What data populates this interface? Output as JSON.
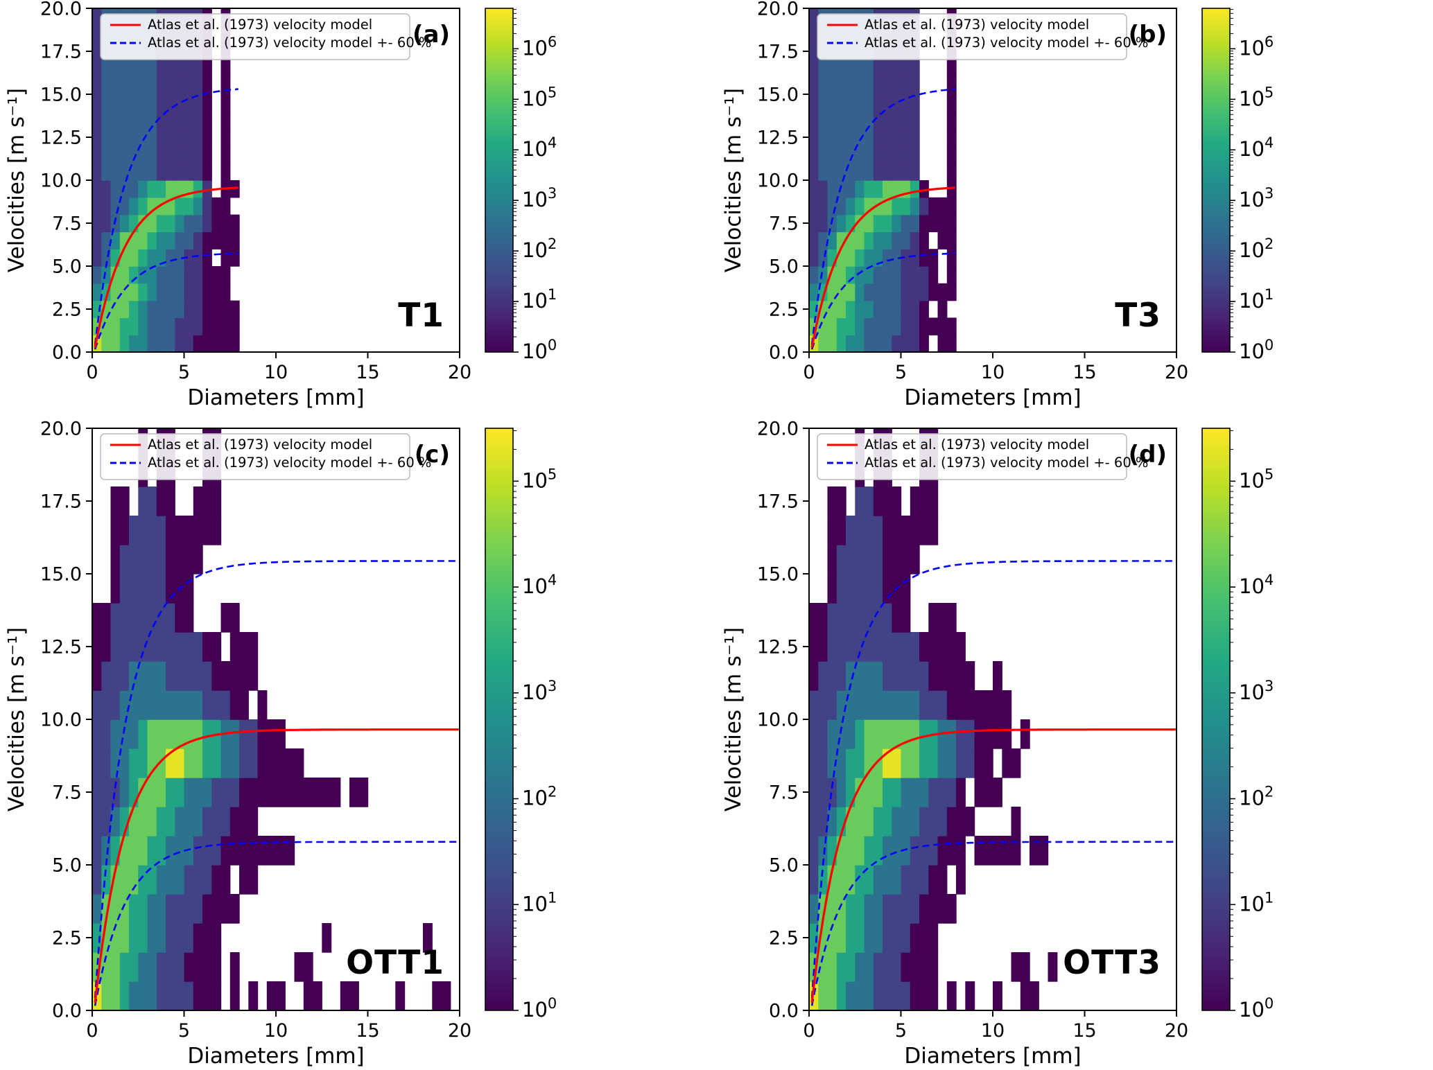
{
  "chart_data": {
    "type": "heatmap",
    "xlabel": "Diameters [mm]",
    "ylabel": "Velocities [m s⁻¹]",
    "xlim": [
      0,
      20
    ],
    "ylim": [
      0,
      20
    ],
    "xtick_values": [
      0,
      5,
      10,
      15,
      20
    ],
    "xtick_labels": [
      "0",
      "5",
      "10",
      "15",
      "20"
    ],
    "ytick_values": [
      0,
      2.5,
      5,
      7.5,
      10,
      12.5,
      15,
      17.5,
      20
    ],
    "ytick_labels": [
      "0.0",
      "2.5",
      "5.0",
      "7.5",
      "10.0",
      "12.5",
      "15.0",
      "17.5",
      "20.0"
    ],
    "legend": [
      {
        "label": "Atlas et al. (1973) velocity model",
        "color": "#ff0000",
        "style": "solid"
      },
      {
        "label": "Atlas et al. (1973) velocity model +- 60 %",
        "color": "#0000ff",
        "style": "dashed"
      }
    ],
    "velocity_model": {
      "form": "v(D) = 9.65 - 10.3 exp(-0.6 D)",
      "v_inf": 9.65,
      "amp": 10.3,
      "decay": 0.6,
      "band_factors": [
        1.6,
        0.6
      ]
    },
    "colormap": {
      "name": "viridis",
      "stops": [
        "#440154",
        "#482475",
        "#414487",
        "#355f8d",
        "#2a788e",
        "#21918c",
        "#22a884",
        "#44bf70",
        "#7ad151",
        "#bddf26",
        "#fde725"
      ]
    },
    "cbar_label_base": "10",
    "panels": [
      {
        "letter": "(a)",
        "name": "T1",
        "row": "top",
        "curve_dmax": 8,
        "cbar_tick_exponents": [
          0,
          1,
          2,
          3,
          4,
          5,
          6
        ],
        "cbar_span": 6.8,
        "value_norm": 6.5,
        "bins": {
          "d0": 0,
          "d_step": 0.5,
          "v0": 0,
          "v_step": 1.0
        },
        "counts_log10_rows_bottom_up": [
          "6554332221100000",
          "5554432221110000",
          "4555432222110000",
          "345554322211000.",
          "235543322211000.",
          "1245543322110.00",
          "1235554332210000",
          "1123455443221000",
          "112234555443100.",
          "1122234455541.00",
          "1222222111110.0.",
          "1222222111110.0.",
          "1222222111110.0.",
          "1222222111110.0.",
          "1222222111110.0.",
          "1222222111110.0.",
          "1222222111110.0.",
          "1222222111110.0.",
          "1222222111110.0.",
          "1222222111110.0."
        ]
      },
      {
        "letter": "(b)",
        "name": "T3",
        "row": "top",
        "curve_dmax": 8,
        "cbar_tick_exponents": [
          0,
          1,
          2,
          3,
          4,
          5,
          6
        ],
        "cbar_span": 6.8,
        "value_norm": 6.5,
        "bins": {
          "d0": 0,
          "d_step": 0.5,
          "v0": 0,
          "v_step": 1.0
        },
        "counts_log10_rows_bottom_up": [
          "6554332221110.00",
          "5554432222110000",
          "4555433222110.0.",
          "3455532222111000",
          "23554332221110.0",
          "12455433221100.0",
          "1235554332210.00",
          "1123455443220000",
          "1122345554431000",
          "1122234455540..0",
          "122222211111...0",
          "122222211111...0",
          "122222211111...0",
          "122222211111...0",
          "122222211111...0",
          "122222211111...0",
          "122222211111...0",
          "122222211111...0",
          "122222211111...0",
          "122222211111...0"
        ]
      },
      {
        "letter": "(c)",
        "name": "OTT1",
        "row": "bottom",
        "curve_dmax": 20,
        "cbar_tick_exponents": [
          0,
          1,
          2,
          3,
          4,
          5
        ],
        "cbar_span": 5.5,
        "value_norm": 5.2,
        "bins": {
          "d0": 0,
          "d_step": 0.5,
          "v0": 0,
          "v_step": 1.0
        },
        "counts_log10_rows_bottom_up": [
          "54432221111000.0.0.00..00..00....0...00.",
          "44433221110000.0......00................",
          "34443322111000...........0..........0..",
          "2444332211110000........................",
          "134443322211100.00......................",
          "1234443322211100000000..................",
          "112344433222111000......................",
          "111234443322211100000000000.00..........",
          "11223344554433221100000.................",
          "112223444444332211000...................",
          "11122222222211100.0.....................",
          "011122221111100000......................",
          "00111111111100.000......................",
          "00111111100...00........................",
          "..011111000.............................",
          "..0111110000............................",
          "..001111000000..........................",
          "..00.1100..000..........................",
          ".....0.00...00..........................",
          ".....0.00...00.........................."
        ]
      },
      {
        "letter": "(d)",
        "name": "OTT3",
        "row": "bottom",
        "curve_dmax": 20,
        "cbar_tick_exponents": [
          0,
          1,
          2,
          3,
          4,
          5
        ],
        "cbar_span": 5.5,
        "value_norm": 5.2,
        "bins": {
          "d0": 0,
          "d_step": 0.5,
          "v0": 0,
          "v_step": 1.0
        },
        "counts_log10_rows_bottom_up": [
          "54432221111000.0.0..0..00...............",
          "44433221110000........00..0.............",
          "34443322111000..........................",
          "2444332211110000........................",
          "134443322211100.0.......................",
          "12344433222111000.00000.00..............",
          "112344433222111000....0.................",
          "11123444332221110.000...................",
          "11223344554433221100.00.................",
          "1122234444443322110000.0................",
          "1112222222221110000000..................",
          "011122221111100000..0...................",
          "00111111111100000.......................",
          "00111111100..000........................",
          "..011111000.............................",
          "..0111110000............................",
          "..001111000000..........................",
          "..00.11000.000..........................",
          ".....0.00...00..........................",
          ".....0.00...00.........................."
        ]
      }
    ]
  }
}
